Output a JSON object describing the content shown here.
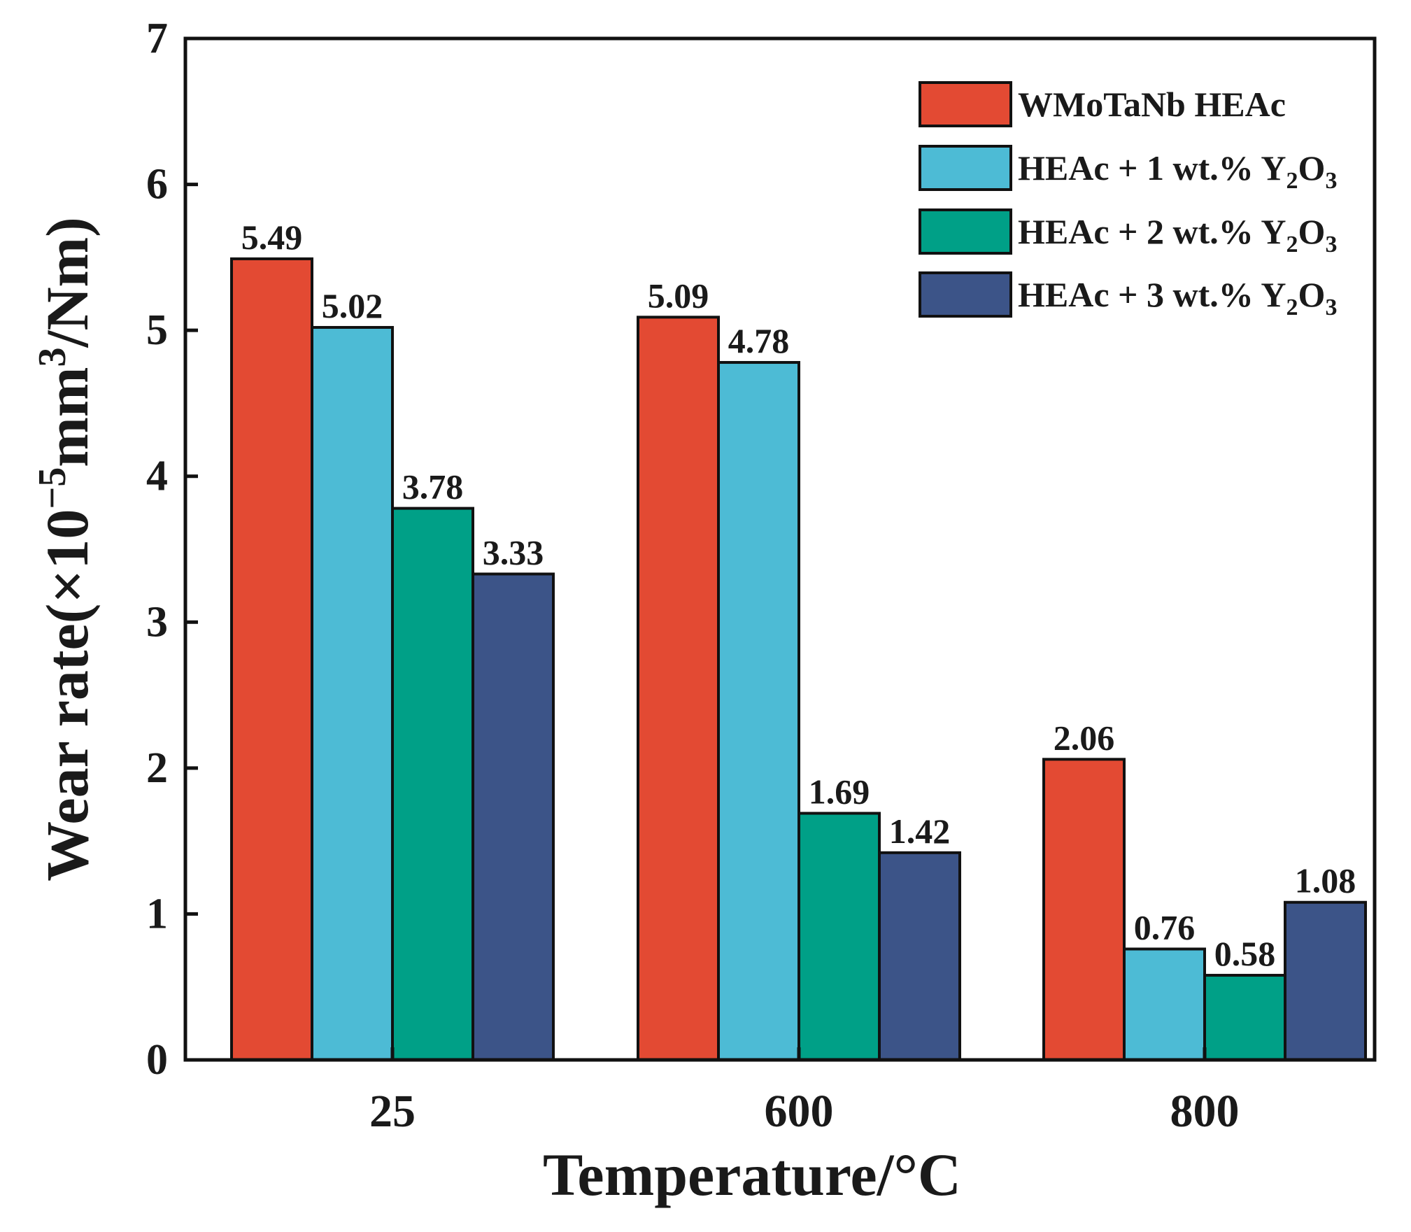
{
  "chart_data": {
    "type": "bar",
    "xlabel": "Temperature/°C",
    "ylabel": {
      "base": "Wear rate(×10",
      "exp1": "−5",
      "mid": "mm",
      "exp2": "3",
      "end": "/Nm)"
    },
    "categories": [
      "25",
      "600",
      "800"
    ],
    "ylim": [
      0,
      7
    ],
    "yticks": [
      "0",
      "1",
      "2",
      "3",
      "4",
      "5",
      "6",
      "7"
    ],
    "legend_position": "top-right",
    "series": [
      {
        "name": "WMoTaNb HEAc",
        "color": "#e34a33",
        "values": [
          5.49,
          5.09,
          2.06
        ],
        "labels": [
          "5.49",
          "5.09",
          "2.06"
        ]
      },
      {
        "name": "HEAc + 1 wt.% Y2O3",
        "color": "#4dbbd5",
        "values": [
          5.02,
          4.78,
          0.76
        ],
        "labels": [
          "5.02",
          "4.78",
          "0.76"
        ]
      },
      {
        "name": "HEAc + 2 wt.% Y2O3",
        "color": "#00a087",
        "values": [
          3.78,
          1.69,
          0.58
        ],
        "labels": [
          "3.78",
          "1.69",
          "0.58"
        ]
      },
      {
        "name": "HEAc + 3 wt.% Y2O3",
        "color": "#3c5488",
        "values": [
          3.33,
          1.42,
          1.08
        ],
        "labels": [
          "3.33",
          "1.42",
          "1.08"
        ]
      }
    ],
    "legend": [
      {
        "prefix": "WMoTaNb HEAc",
        "chem": false
      },
      {
        "prefix": "HEAc + 1 wt.% Y",
        "sub1": "2",
        "mid": "O",
        "sub2": "3",
        "chem": true
      },
      {
        "prefix": "HEAc + 2 wt.% Y",
        "sub1": "2",
        "mid": "O",
        "sub2": "3",
        "chem": true
      },
      {
        "prefix": "HEAc + 3 wt.% Y",
        "sub1": "2",
        "mid": "O",
        "sub2": "3",
        "chem": true
      }
    ]
  }
}
